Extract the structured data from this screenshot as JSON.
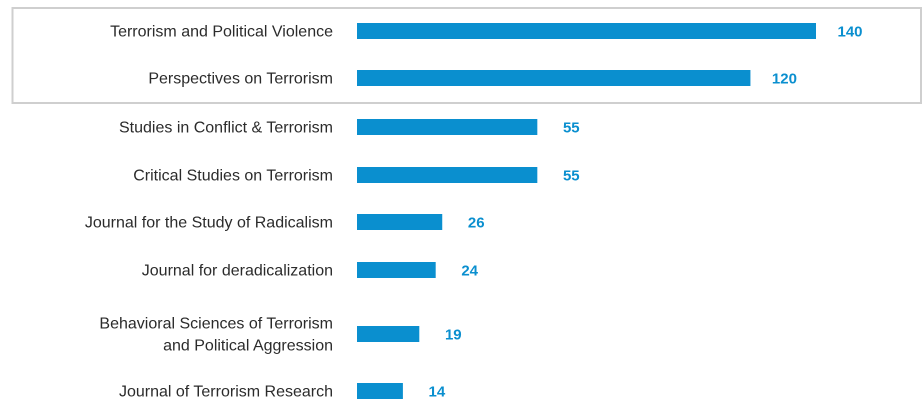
{
  "chart_data": {
    "type": "bar",
    "orientation": "horizontal",
    "categories": [
      [
        "Terrorism and Political Violence"
      ],
      [
        "Perspectives on Terrorism"
      ],
      [
        "Studies in Conflict & Terrorism"
      ],
      [
        "Critical Studies on Terrorism"
      ],
      [
        "Journal for the Study of Radicalism"
      ],
      [
        "Journal for deradicalization"
      ],
      [
        "Behavioral Sciences of Terrorism",
        "and Political Aggression"
      ],
      [
        "Journal of Terrorism Research"
      ]
    ],
    "values": [
      140,
      120,
      55,
      55,
      26,
      24,
      19,
      14
    ],
    "xlim": [
      0,
      140
    ],
    "title": "",
    "xlabel": "",
    "ylabel": "",
    "grid": false,
    "highlighted_categories": [
      0,
      1
    ],
    "colors": {
      "bar": "#0a8fcf",
      "value_label": "#0a8fcf",
      "category_label": "#2b2b2b",
      "highlight_border": "#cfcfcf"
    }
  }
}
